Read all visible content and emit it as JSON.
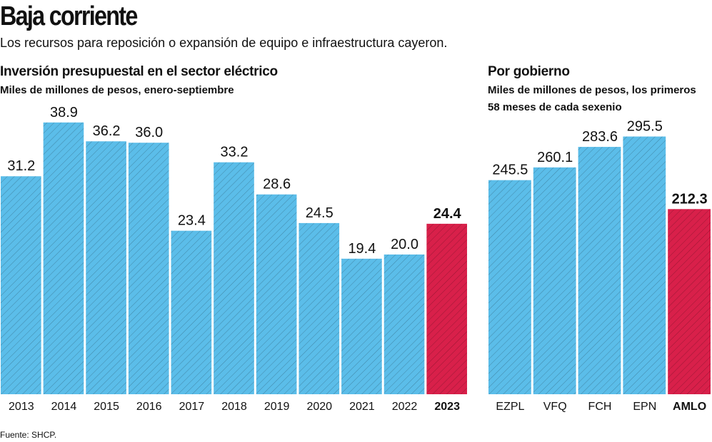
{
  "title": "Baja corriente",
  "subtitle": "Los recursos para reposición o expansión de equipo e infraestructura cayeron.",
  "source": "Fuente: SHCP.",
  "chart_data": [
    {
      "type": "bar",
      "title": "Inversión presupuestal en el sector eléctrico",
      "subtitle": "Miles de millones de pesos, enero-septiembre",
      "categories": [
        "2013",
        "2014",
        "2015",
        "2016",
        "2017",
        "2018",
        "2019",
        "2020",
        "2021",
        "2022",
        "2023"
      ],
      "values": [
        31.2,
        38.9,
        36.2,
        36.0,
        23.4,
        33.2,
        28.6,
        24.5,
        19.4,
        20.0,
        24.4
      ],
      "value_labels": [
        "31.2",
        "38.9",
        "36.2",
        "36.0",
        "23.4",
        "33.2",
        "28.6",
        "24.5",
        "19.4",
        "20.0",
        "24.4"
      ],
      "colors": [
        "#5bbde9",
        "#5bbde9",
        "#5bbde9",
        "#5bbde9",
        "#5bbde9",
        "#5bbde9",
        "#5bbde9",
        "#5bbde9",
        "#5bbde9",
        "#5bbde9",
        "#d8204a"
      ],
      "ylim": [
        0,
        40
      ]
    },
    {
      "type": "bar",
      "title": "Por gobierno",
      "subtitle": "Miles de millones de pesos, los primeros 58 meses de cada sexenio",
      "categories": [
        "EZPL",
        "VFQ",
        "FCH",
        "EPN",
        "AMLO"
      ],
      "values": [
        245.5,
        260.1,
        283.6,
        295.5,
        212.3
      ],
      "colors": [
        "#5bbde9",
        "#5bbde9",
        "#5bbde9",
        "#5bbde9",
        "#d8204a"
      ],
      "ylim": [
        0,
        300
      ]
    }
  ]
}
